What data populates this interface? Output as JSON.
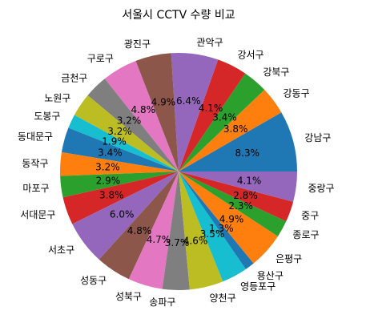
{
  "chart_data": {
    "type": "pie",
    "title": "서울시 CCTV 수량 비교",
    "start_angle_deg": 0,
    "direction": "counterclockwise",
    "slices": [
      {
        "label": "강남구",
        "value": 8.3,
        "pct_label": "8.3%",
        "color": "#1f77b4"
      },
      {
        "label": "강동구",
        "value": 3.8,
        "pct_label": "3.8%",
        "color": "#ff7f0e"
      },
      {
        "label": "강북구",
        "value": 3.4,
        "pct_label": "3.4%",
        "color": "#2ca02c"
      },
      {
        "label": "강서구",
        "value": 4.1,
        "pct_label": "4.1%",
        "color": "#d62728"
      },
      {
        "label": "관악구",
        "value": 6.4,
        "pct_label": "6.4%",
        "color": "#9467bd"
      },
      {
        "label": "광진구",
        "value": 4.9,
        "pct_label": "4.9%",
        "color": "#8c564b"
      },
      {
        "label": "구로구",
        "value": 4.8,
        "pct_label": "4.8%",
        "color": "#e377c2"
      },
      {
        "label": "금천구",
        "value": 3.2,
        "pct_label": "3.2%",
        "color": "#7f7f7f"
      },
      {
        "label": "노원구",
        "value": 3.2,
        "pct_label": "3.2%",
        "color": "#bcbd22"
      },
      {
        "label": "도봉구",
        "value": 1.9,
        "pct_label": "1.9%",
        "color": "#17becf"
      },
      {
        "label": "동대문구",
        "value": 3.4,
        "pct_label": "3.4%",
        "color": "#1f77b4"
      },
      {
        "label": "동작구",
        "value": 3.2,
        "pct_label": "3.2%",
        "color": "#ff7f0e"
      },
      {
        "label": "마포구",
        "value": 2.9,
        "pct_label": "2.9%",
        "color": "#2ca02c"
      },
      {
        "label": "서대문구",
        "value": 3.8,
        "pct_label": "3.8%",
        "color": "#d62728"
      },
      {
        "label": "서초구",
        "value": 6.0,
        "pct_label": "6.0%",
        "color": "#9467bd"
      },
      {
        "label": "성동구",
        "value": 4.8,
        "pct_label": "4.8%",
        "color": "#8c564b"
      },
      {
        "label": "성북구",
        "value": 4.7,
        "pct_label": "4.7%",
        "color": "#e377c2"
      },
      {
        "label": "송파구",
        "value": 3.7,
        "pct_label": "3.7%",
        "color": "#7f7f7f"
      },
      {
        "label": "양천구",
        "value": 4.6,
        "pct_label": "4.6%",
        "color": "#bcbd22"
      },
      {
        "label": "영등포구",
        "value": 3.5,
        "pct_label": "3.5%",
        "color": "#17becf"
      },
      {
        "label": "용산구",
        "value": 1.3,
        "pct_label": "1.3%",
        "color": "#1f77b4"
      },
      {
        "label": "은평구",
        "value": 4.9,
        "pct_label": "4.9%",
        "color": "#ff7f0e"
      },
      {
        "label": "종로구",
        "value": 2.3,
        "pct_label": "2.3%",
        "color": "#2ca02c"
      },
      {
        "label": "중구",
        "value": 2.8,
        "pct_label": "2.8%",
        "color": "#d62728"
      },
      {
        "label": "중랑구",
        "value": 4.1,
        "pct_label": "4.1%",
        "color": "#9467bd"
      }
    ]
  }
}
